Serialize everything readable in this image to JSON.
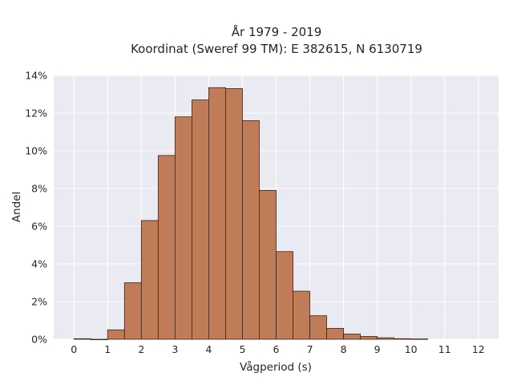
{
  "chart_data": {
    "type": "bar",
    "title_lines": [
      "År 1979 - 2019",
      "Koordinat (Sweref 99 TM): E 382615, N 6130719"
    ],
    "xlabel": "Vågperiod (s)",
    "ylabel": "Andel",
    "xlim": [
      -0.6,
      12.6
    ],
    "ylim": [
      0,
      14
    ],
    "x_ticks": [
      0,
      1,
      2,
      3,
      4,
      5,
      6,
      7,
      8,
      9,
      10,
      11,
      12
    ],
    "x_tick_labels": [
      "0",
      "1",
      "2",
      "3",
      "4",
      "5",
      "6",
      "7",
      "8",
      "9",
      "10",
      "11",
      "12"
    ],
    "y_ticks": [
      0,
      2,
      4,
      6,
      8,
      10,
      12,
      14
    ],
    "y_tick_labels": [
      "0%",
      "2%",
      "4%",
      "6%",
      "8%",
      "10%",
      "12%",
      "14%"
    ],
    "bin_width": 0.5,
    "bins": [
      {
        "start": 0.0,
        "value": 0.03
      },
      {
        "start": 0.5,
        "value": 0.0
      },
      {
        "start": 1.0,
        "value": 0.5
      },
      {
        "start": 1.5,
        "value": 3.0
      },
      {
        "start": 2.0,
        "value": 6.3
      },
      {
        "start": 2.5,
        "value": 9.75
      },
      {
        "start": 3.0,
        "value": 11.8
      },
      {
        "start": 3.5,
        "value": 12.7
      },
      {
        "start": 4.0,
        "value": 13.35
      },
      {
        "start": 4.5,
        "value": 13.3
      },
      {
        "start": 5.0,
        "value": 11.6
      },
      {
        "start": 5.5,
        "value": 7.9
      },
      {
        "start": 6.0,
        "value": 4.65
      },
      {
        "start": 6.5,
        "value": 2.55
      },
      {
        "start": 7.0,
        "value": 1.25
      },
      {
        "start": 7.5,
        "value": 0.58
      },
      {
        "start": 8.0,
        "value": 0.28
      },
      {
        "start": 8.5,
        "value": 0.15
      },
      {
        "start": 9.0,
        "value": 0.08
      },
      {
        "start": 9.5,
        "value": 0.03
      },
      {
        "start": 10.0,
        "value": 0.02
      }
    ],
    "grid": true,
    "colors": {
      "background": "#eaeaf2",
      "grid": "#ffffff",
      "bar_fill": "#c07c59",
      "bar_edge": "#3d2418"
    }
  }
}
